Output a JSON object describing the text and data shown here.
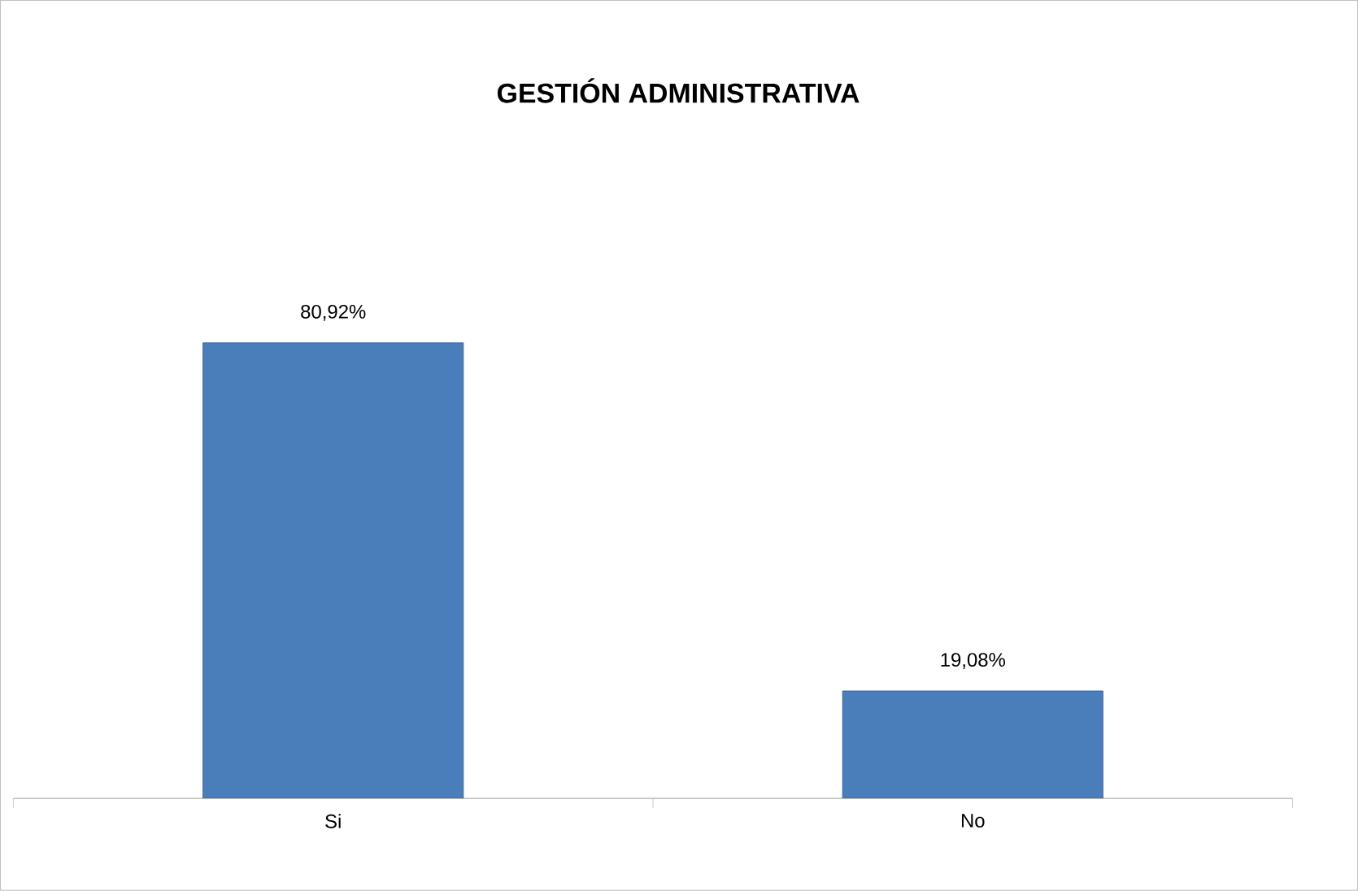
{
  "chart_data": {
    "type": "bar",
    "title": "GESTIÓN ADMINISTRATIVA",
    "categories": [
      "Si",
      "No"
    ],
    "values": [
      80.92,
      19.08
    ],
    "value_labels": [
      "80,92%",
      "19,08%"
    ],
    "color": "#4a7ebb",
    "data_labels": false
  }
}
